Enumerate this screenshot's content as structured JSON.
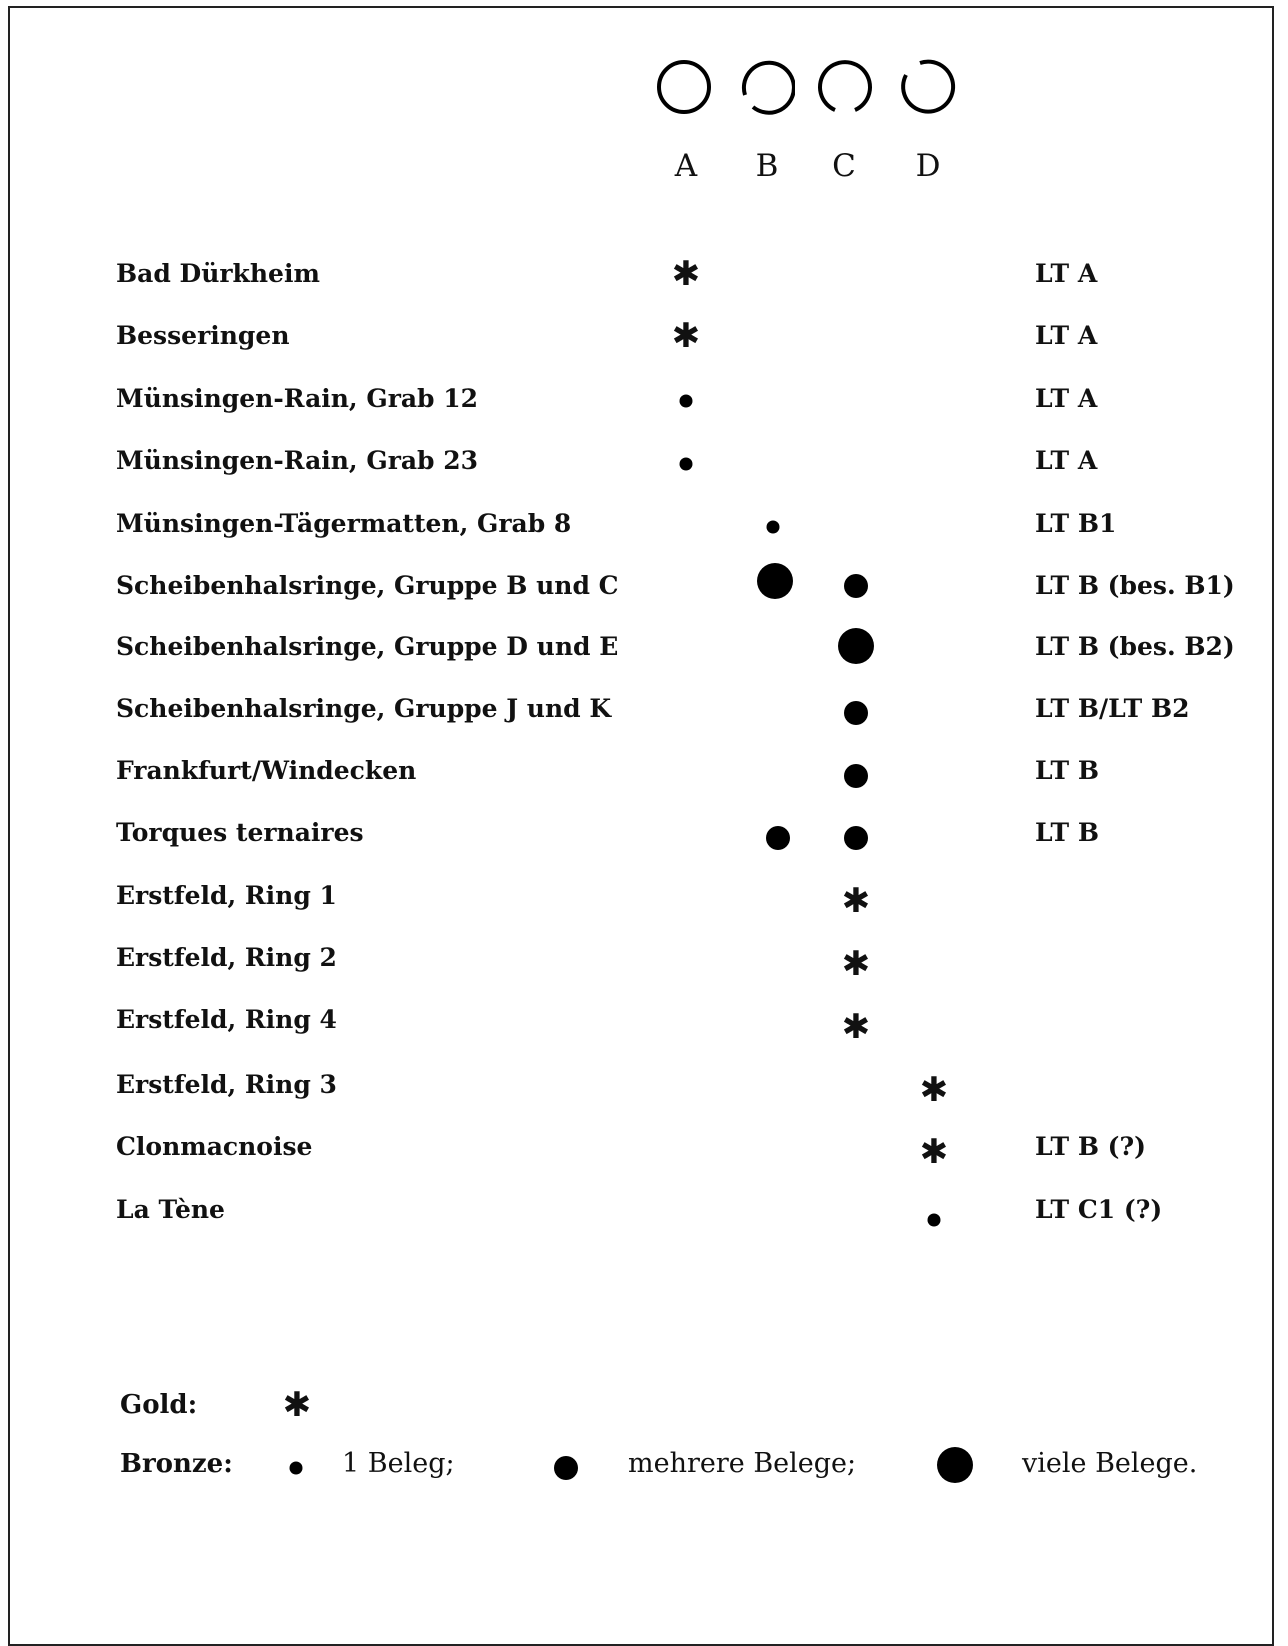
{
  "type_labels": [
    "A",
    "B",
    "C",
    "D"
  ],
  "rows": [
    {
      "site": "Bad Dürkheim",
      "date": "LT A",
      "marks": [
        {
          "col": "A",
          "kind": "gold"
        }
      ]
    },
    {
      "site": "Besseringen",
      "date": "LT A",
      "marks": [
        {
          "col": "A",
          "kind": "gold"
        }
      ]
    },
    {
      "site": "Münsingen-Rain, Grab 12",
      "date": "LT A",
      "marks": [
        {
          "col": "A",
          "kind": "bronze-1"
        }
      ]
    },
    {
      "site": "Münsingen-Rain, Grab 23",
      "date": "LT A",
      "marks": [
        {
          "col": "A",
          "kind": "bronze-1"
        }
      ]
    },
    {
      "site": "Münsingen-Tägermatten, Grab 8",
      "date": "LT B1",
      "marks": [
        {
          "col": "B",
          "kind": "bronze-1"
        }
      ]
    },
    {
      "site": "Scheibenhalsringe, Gruppe B und C",
      "date": "LT B (bes. B1)",
      "marks": [
        {
          "col": "B",
          "kind": "bronze-many"
        },
        {
          "col": "C",
          "kind": "bronze-several"
        }
      ]
    },
    {
      "site": "Scheibenhalsringe, Gruppe D und E",
      "date": "LT B (bes. B2)",
      "marks": [
        {
          "col": "C",
          "kind": "bronze-many"
        }
      ]
    },
    {
      "site": "Scheibenhalsringe, Gruppe J und K",
      "date": "LT B/LT B2",
      "marks": [
        {
          "col": "C",
          "kind": "bronze-several"
        }
      ]
    },
    {
      "site": "Frankfurt/Windecken",
      "date": "LT B",
      "marks": [
        {
          "col": "C",
          "kind": "bronze-several"
        }
      ]
    },
    {
      "site": "Torques ternaires",
      "date": "LT B",
      "marks": [
        {
          "col": "B",
          "kind": "bronze-several"
        },
        {
          "col": "C",
          "kind": "bronze-several"
        }
      ]
    },
    {
      "site": "Erstfeld, Ring 1",
      "date": "",
      "marks": [
        {
          "col": "C",
          "kind": "gold"
        }
      ]
    },
    {
      "site": "Erstfeld, Ring 2",
      "date": "",
      "marks": [
        {
          "col": "C",
          "kind": "gold"
        }
      ]
    },
    {
      "site": "Erstfeld, Ring 4",
      "date": "",
      "marks": [
        {
          "col": "C",
          "kind": "gold"
        }
      ]
    },
    {
      "site": "Erstfeld, Ring 3",
      "date": "",
      "marks": [
        {
          "col": "D",
          "kind": "gold"
        }
      ]
    },
    {
      "site": "Clonmacnoise",
      "date": "LT B (?)",
      "marks": [
        {
          "col": "D",
          "kind": "gold"
        }
      ]
    },
    {
      "site": "La Tène",
      "date": "LT C1 (?)",
      "marks": [
        {
          "col": "D",
          "kind": "bronze-1"
        }
      ]
    }
  ],
  "legend": {
    "gold_label": "Gold:",
    "bronze_label": "Bronze:",
    "gold_symbol": "✱",
    "one_label": "1 Beleg;",
    "several_label": "mehrere Belege;",
    "many_label": "viele Belege."
  },
  "colors": {
    "ink": "#000000",
    "background": "#ffffff"
  }
}
